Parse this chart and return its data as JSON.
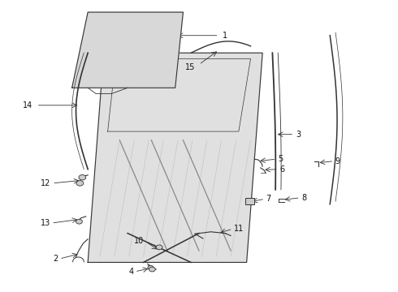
{
  "bg_color": "#ffffff",
  "fig_width": 4.9,
  "fig_height": 3.6,
  "dpi": 100,
  "line_color": "#333333",
  "text_color": "#111111",
  "font_size": 7,
  "hatch_color": "#aaaaaa",
  "part_fill": "#cccccc",
  "door_fill": "#e0e0e0"
}
